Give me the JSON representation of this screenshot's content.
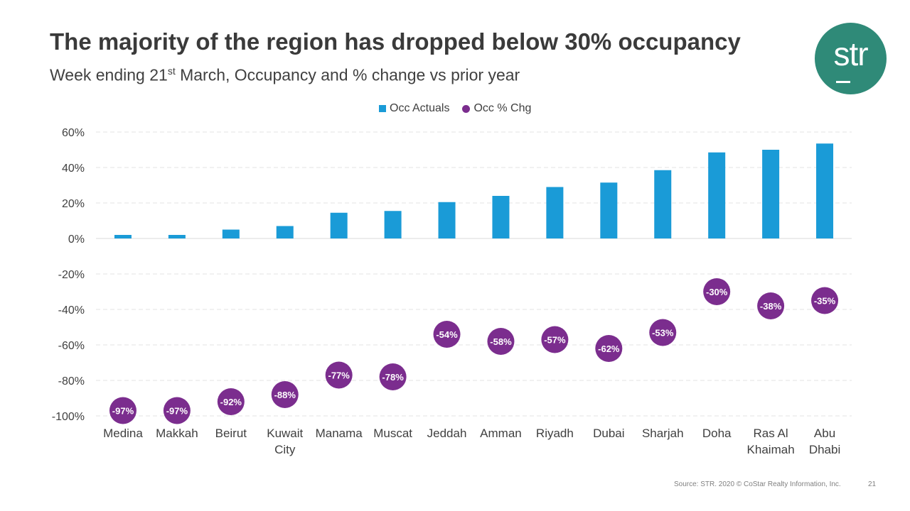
{
  "slide": {
    "title": "The majority of the region has dropped below 30% occupancy",
    "subtitle_prefix": "Week ending 21",
    "subtitle_sup": "st",
    "subtitle_suffix": " March, Occupancy and % change vs prior year",
    "logo_text": "str",
    "source": "Source: STR. 2020 © CoStar Realty Information, Inc.",
    "page_number": "21",
    "colors": {
      "bar": "#1a9bd7",
      "dot": "#7b2d8e",
      "logo": "#2f8a78"
    }
  },
  "chart_data": {
    "type": "bar",
    "categories": [
      [
        "Medina"
      ],
      [
        "Makkah"
      ],
      [
        "Beirut"
      ],
      [
        "Kuwait",
        "City"
      ],
      [
        "Manama"
      ],
      [
        "Muscat"
      ],
      [
        "Jeddah"
      ],
      [
        "Amman"
      ],
      [
        "Riyadh"
      ],
      [
        "Dubai"
      ],
      [
        "Sharjah"
      ],
      [
        "Doha"
      ],
      [
        "Ras Al",
        "Khaimah"
      ],
      [
        "Abu",
        "Dhabi"
      ]
    ],
    "series": [
      {
        "name": "Occ Actuals",
        "type": "bar",
        "unit": "%",
        "values": [
          2,
          2,
          5,
          7,
          14.5,
          15.5,
          20.5,
          24,
          29,
          31.5,
          38.5,
          48.5,
          50,
          53.5
        ]
      },
      {
        "name": "Occ % Chg",
        "type": "scatter",
        "unit": "%",
        "values": [
          -97,
          -97,
          -92,
          -88,
          -77,
          -78,
          -54,
          -58,
          -57,
          -62,
          -53,
          -30,
          -38,
          -35
        ],
        "labels": [
          "-97%",
          "-97%",
          "-92%",
          "-88%",
          "-77%",
          "-78%",
          "-54%",
          "-58%",
          "-57%",
          "-62%",
          "-53%",
          "-30%",
          "-38%",
          "-35%"
        ]
      }
    ],
    "yticks": [
      60,
      40,
      20,
      0,
      -20,
      -40,
      -60,
      -80,
      -100
    ],
    "ytick_labels": [
      "60%",
      "40%",
      "20%",
      "0%",
      "-20%",
      "-40%",
      "-60%",
      "-80%",
      "-100%"
    ],
    "ylim": [
      -100,
      60
    ],
    "grid": true,
    "legend_position": "top-center"
  }
}
